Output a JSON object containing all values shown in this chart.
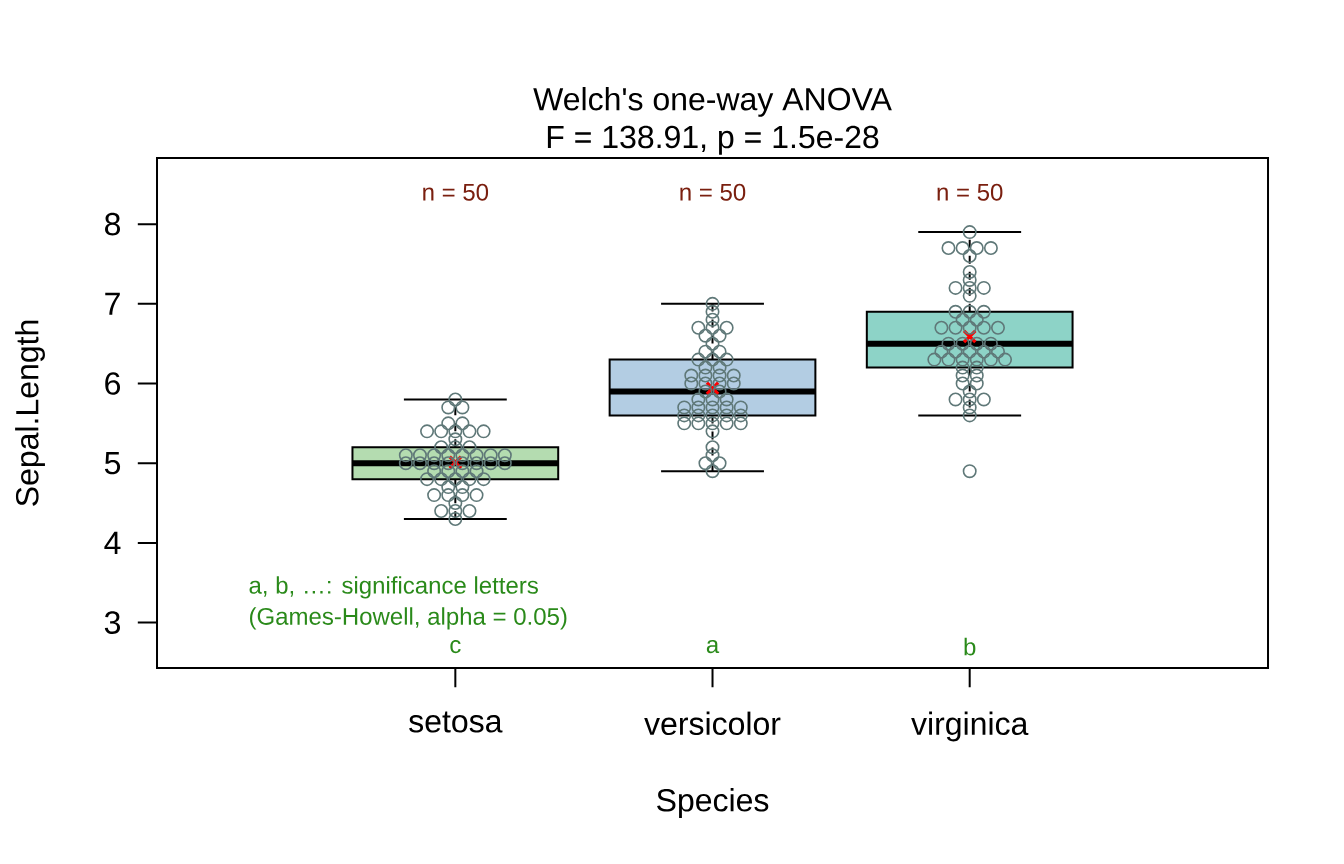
{
  "chart_data": {
    "type": "box",
    "title": "Welch's one-way ANOVA",
    "subtitle": "F = 138.91, p = 1.5e-28",
    "xlabel": "Species",
    "ylabel": "Sepal.Length",
    "categories": [
      "setosa",
      "versicolor",
      "virginica"
    ],
    "ylim": [
      2.43,
      8.83
    ],
    "yticks": [
      3,
      4,
      5,
      6,
      7,
      8
    ],
    "series": [
      {
        "type": "box",
        "colors": [
          "#b4dcb0",
          "#b3cde3",
          "#8dd3c7"
        ],
        "boxes": [
          {
            "low": 4.3,
            "q1": 4.8,
            "median": 5.0,
            "q3": 5.2,
            "high": 5.8,
            "mean": 5.01
          },
          {
            "low": 4.9,
            "q1": 5.6,
            "median": 5.9,
            "q3": 6.3,
            "high": 7.0,
            "mean": 5.94
          },
          {
            "low": 5.6,
            "q1": 6.2,
            "median": 6.5,
            "q3": 6.9,
            "high": 7.9,
            "mean": 6.59
          }
        ]
      },
      {
        "type": "scatter",
        "color": "#5f7878",
        "marker": "circle",
        "x": [
          "setosa",
          "setosa",
          "setosa",
          "setosa",
          "setosa",
          "setosa",
          "setosa",
          "setosa",
          "setosa",
          "setosa",
          "setosa",
          "setosa",
          "setosa",
          "setosa",
          "setosa",
          "setosa",
          "setosa",
          "setosa",
          "setosa",
          "setosa",
          "setosa",
          "setosa",
          "setosa",
          "setosa",
          "setosa",
          "setosa",
          "setosa",
          "setosa",
          "setosa",
          "setosa",
          "setosa",
          "setosa",
          "setosa",
          "setosa",
          "setosa",
          "setosa",
          "setosa",
          "setosa",
          "setosa",
          "setosa",
          "setosa",
          "setosa",
          "setosa",
          "setosa",
          "setosa",
          "setosa",
          "setosa",
          "setosa",
          "setosa",
          "setosa",
          "versicolor",
          "versicolor",
          "versicolor",
          "versicolor",
          "versicolor",
          "versicolor",
          "versicolor",
          "versicolor",
          "versicolor",
          "versicolor",
          "versicolor",
          "versicolor",
          "versicolor",
          "versicolor",
          "versicolor",
          "versicolor",
          "versicolor",
          "versicolor",
          "versicolor",
          "versicolor",
          "versicolor",
          "versicolor",
          "versicolor",
          "versicolor",
          "versicolor",
          "versicolor",
          "versicolor",
          "versicolor",
          "versicolor",
          "versicolor",
          "versicolor",
          "versicolor",
          "versicolor",
          "versicolor",
          "versicolor",
          "versicolor",
          "versicolor",
          "versicolor",
          "versicolor",
          "versicolor",
          "versicolor",
          "versicolor",
          "versicolor",
          "versicolor",
          "versicolor",
          "versicolor",
          "versicolor",
          "versicolor",
          "versicolor",
          "versicolor",
          "virginica",
          "virginica",
          "virginica",
          "virginica",
          "virginica",
          "virginica",
          "virginica",
          "virginica",
          "virginica",
          "virginica",
          "virginica",
          "virginica",
          "virginica",
          "virginica",
          "virginica",
          "virginica",
          "virginica",
          "virginica",
          "virginica",
          "virginica",
          "virginica",
          "virginica",
          "virginica",
          "virginica",
          "virginica",
          "virginica",
          "virginica",
          "virginica",
          "virginica",
          "virginica",
          "virginica",
          "virginica",
          "virginica",
          "virginica",
          "virginica",
          "virginica",
          "virginica",
          "virginica",
          "virginica",
          "virginica",
          "virginica",
          "virginica",
          "virginica",
          "virginica",
          "virginica",
          "virginica",
          "virginica",
          "virginica",
          "virginica",
          "virginica"
        ],
        "values": [
          5.1,
          4.9,
          4.7,
          4.6,
          5.0,
          5.4,
          4.6,
          5.0,
          4.4,
          4.9,
          5.4,
          4.8,
          4.8,
          4.3,
          5.8,
          5.7,
          5.4,
          5.1,
          5.7,
          5.1,
          5.4,
          5.1,
          4.6,
          5.1,
          4.8,
          5.0,
          5.0,
          5.2,
          5.2,
          4.7,
          4.8,
          5.4,
          5.2,
          5.5,
          4.9,
          5.0,
          5.5,
          4.9,
          4.4,
          5.1,
          5.0,
          4.5,
          4.4,
          5.0,
          5.1,
          4.8,
          5.1,
          4.6,
          5.3,
          5.0,
          7.0,
          6.4,
          6.9,
          5.5,
          6.5,
          5.7,
          6.3,
          4.9,
          6.6,
          5.2,
          5.0,
          5.9,
          6.0,
          6.1,
          5.6,
          6.7,
          5.6,
          5.8,
          6.2,
          5.6,
          5.9,
          6.1,
          6.3,
          6.1,
          6.4,
          6.6,
          6.8,
          6.7,
          6.0,
          5.7,
          5.5,
          5.5,
          5.8,
          6.0,
          5.4,
          6.0,
          6.7,
          6.3,
          5.6,
          5.5,
          5.5,
          6.1,
          5.8,
          5.0,
          5.6,
          5.7,
          5.7,
          6.2,
          5.1,
          5.7,
          6.3,
          5.8,
          7.1,
          6.3,
          6.5,
          7.6,
          4.9,
          7.3,
          6.7,
          7.2,
          6.5,
          6.4,
          6.8,
          5.7,
          5.8,
          6.4,
          6.5,
          7.7,
          7.7,
          6.0,
          6.9,
          5.6,
          7.7,
          6.3,
          6.7,
          7.2,
          6.2,
          6.1,
          6.4,
          7.2,
          7.4,
          7.9,
          6.4,
          6.3,
          6.1,
          7.7,
          6.3,
          6.4,
          6.0,
          6.9,
          6.7,
          6.9,
          5.8,
          6.8,
          6.7,
          6.7,
          6.3,
          6.5,
          6.2,
          5.9
        ]
      }
    ],
    "annotations": [
      "n = 50",
      "n = 50",
      "n = 50",
      "c",
      "a",
      "b",
      "a, b, …: significance letters",
      "(Games-Howell, alpha = 0.05)"
    ]
  }
}
